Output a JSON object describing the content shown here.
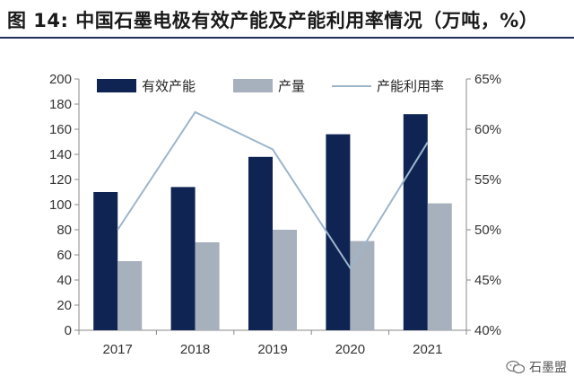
{
  "title": "图 14: 中国石墨电极有效产能及产能利用率情况（万吨，%）",
  "watermark": "石墨盟",
  "colors": {
    "capacity": "#0f2452",
    "output": "#a7b0bd",
    "utilization": "#9cb6cc",
    "axis": "#888888",
    "title_rule": "#1f2f5a"
  },
  "chart_data": {
    "type": "bar",
    "categories": [
      "2017",
      "2018",
      "2019",
      "2020",
      "2021"
    ],
    "series": [
      {
        "name": "有效产能",
        "type": "bar",
        "axis": "left",
        "values": [
          110,
          114,
          138,
          156,
          172
        ]
      },
      {
        "name": "产量",
        "type": "bar",
        "axis": "left",
        "values": [
          55,
          70,
          80,
          71,
          101
        ]
      },
      {
        "name": "产能利用率",
        "type": "line",
        "axis": "right",
        "values": [
          50,
          61.7,
          58,
          46.2,
          58.7
        ]
      }
    ],
    "y_left": {
      "range": [
        0,
        200
      ],
      "ticks": [
        "0",
        "20",
        "40",
        "60",
        "80",
        "100",
        "120",
        "140",
        "160",
        "180",
        "200"
      ]
    },
    "y_right": {
      "range": [
        40,
        65
      ],
      "ticks": [
        "40%",
        "45%",
        "50%",
        "55%",
        "60%",
        "65%"
      ]
    },
    "grid": false,
    "legend_position": "top"
  }
}
